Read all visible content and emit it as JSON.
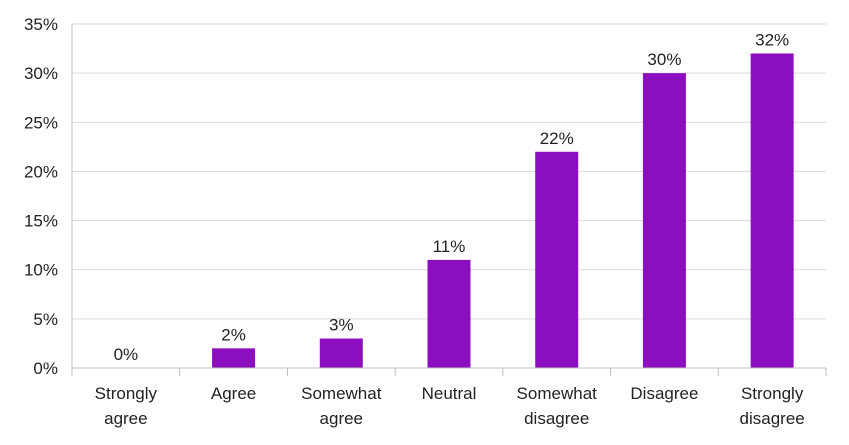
{
  "chart_data": {
    "type": "bar",
    "categories": [
      [
        "Strongly",
        "agree"
      ],
      [
        "Agree"
      ],
      [
        "Somewhat",
        "agree"
      ],
      [
        "Neutral"
      ],
      [
        "Somewhat",
        "disagree"
      ],
      [
        "Disagree"
      ],
      [
        "Strongly",
        "disagree"
      ]
    ],
    "values": [
      0,
      2,
      3,
      11,
      22,
      30,
      32
    ],
    "data_labels": [
      "0%",
      "2%",
      "3%",
      "11%",
      "22%",
      "30%",
      "32%"
    ],
    "yticks": [
      0,
      5,
      10,
      15,
      20,
      25,
      30,
      35
    ],
    "ytick_labels": [
      "0%",
      "5%",
      "10%",
      "15%",
      "20%",
      "25%",
      "30%",
      "35%"
    ],
    "ylim": [
      0,
      35
    ],
    "grid": true,
    "legend": "none",
    "title": "",
    "xlabel": "",
    "ylabel": "",
    "colors": {
      "bar": "#8B0FBF",
      "grid": "#D9D9D9",
      "axis": "#BFBFBF",
      "text": "#222222"
    }
  }
}
